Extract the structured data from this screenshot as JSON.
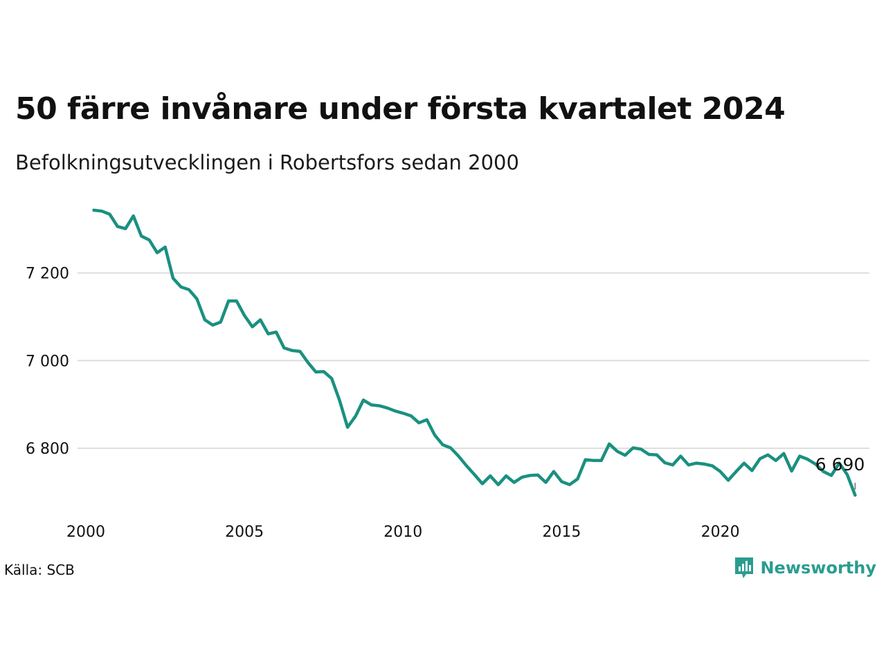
{
  "title": "50 färre invånare under första kvartalet 2024",
  "subtitle": "Befolkningsutvecklingen i Robertsfors sedan 2000",
  "source": "Källa: SCB",
  "brand": {
    "name": "Newsworthy",
    "icon": "newsworthy-logo-icon",
    "color": "#2a9d8f"
  },
  "chart_data": {
    "type": "line",
    "color": "#1a9080",
    "grid": true,
    "x_ticks": [
      2000,
      2005,
      2010,
      2015,
      2020
    ],
    "x_tick_labels": [
      "2000",
      "2005",
      "2010",
      "2015",
      "2020"
    ],
    "y_ticks": [
      6800,
      7000,
      7200
    ],
    "y_tick_labels": [
      "6 800",
      "7 000",
      "7 200"
    ],
    "xlim": [
      2000,
      2024.7
    ],
    "ylim": [
      6655,
      7365
    ],
    "end_label": "6 690",
    "series": [
      {
        "x": [
          2000.25,
          2000.5,
          2000.75,
          2001.0,
          2001.25,
          2001.5,
          2001.75,
          2002.0,
          2002.25,
          2002.5,
          2002.75,
          2003.0,
          2003.25,
          2003.5,
          2003.75,
          2004.0,
          2004.25,
          2004.5,
          2004.75,
          2005.0,
          2005.25,
          2005.5,
          2005.75,
          2006.0,
          2006.25,
          2006.5,
          2006.75,
          2007.0,
          2007.25,
          2007.5,
          2007.75,
          2008.0,
          2008.25,
          2008.5,
          2008.75,
          2009.0,
          2009.25,
          2009.5,
          2009.75,
          2010.0,
          2010.25,
          2010.5,
          2010.75,
          2011.0,
          2011.25,
          2011.5,
          2011.75,
          2012.0,
          2012.25,
          2012.5,
          2012.75,
          2013.0,
          2013.25,
          2013.5,
          2013.75,
          2014.0,
          2014.25,
          2014.5,
          2014.75,
          2015.0,
          2015.25,
          2015.5,
          2015.75,
          2016.0,
          2016.25,
          2016.5,
          2016.75,
          2017.0,
          2017.25,
          2017.5,
          2017.75,
          2018.0,
          2018.25,
          2018.5,
          2018.75,
          2019.0,
          2019.25,
          2019.5,
          2019.75,
          2020.0,
          2020.25,
          2020.5,
          2020.75,
          2021.0,
          2021.25,
          2021.5,
          2021.75,
          2022.0,
          2022.25,
          2022.5,
          2022.75,
          2023.0,
          2023.25,
          2023.5,
          2023.75,
          2024.0,
          2024.25
        ],
        "values": [
          7343,
          7341,
          7334,
          7306,
          7301,
          7330,
          7284,
          7275,
          7246,
          7259,
          7188,
          7168,
          7162,
          7141,
          7093,
          7081,
          7088,
          7136,
          7136,
          7103,
          7077,
          7093,
          7061,
          7065,
          7029,
          7023,
          7021,
          6996,
          6974,
          6975,
          6959,
          6909,
          6848,
          6873,
          6910,
          6899,
          6897,
          6892,
          6885,
          6880,
          6874,
          6858,
          6865,
          6830,
          6808,
          6801,
          6782,
          6760,
          6740,
          6719,
          6737,
          6717,
          6737,
          6722,
          6734,
          6738,
          6739,
          6722,
          6747,
          6724,
          6717,
          6730,
          6774,
          6772,
          6772,
          6810,
          6793,
          6784,
          6801,
          6798,
          6786,
          6785,
          6767,
          6762,
          6782,
          6762,
          6766,
          6764,
          6760,
          6747,
          6727,
          6747,
          6766,
          6749,
          6776,
          6785,
          6772,
          6788,
          6748,
          6782,
          6775,
          6764,
          6747,
          6738,
          6766,
          6740,
          6693
        ]
      }
    ]
  }
}
